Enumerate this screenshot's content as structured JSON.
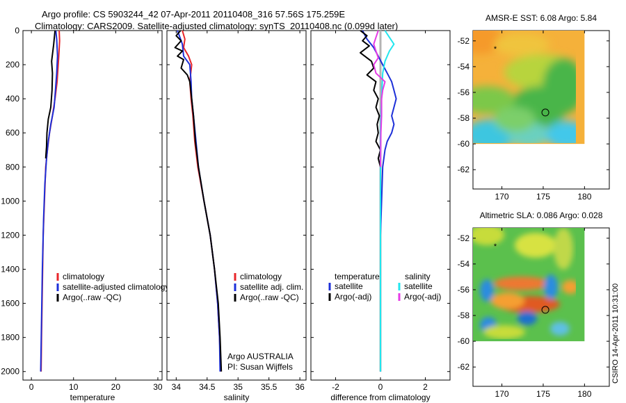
{
  "header": {
    "title_line1": "Argo profile: CS 5903244_42 07-Apr-2011 20110408_316 57.56S 175.259E",
    "title_line2": "Climatology: CARS2009. Satellite-adjusted climatology: synTS_20110408.nc (0.099d later)"
  },
  "side_label": "CSIRO 14-Apr-2011 10:31:00",
  "colors": {
    "climatology": "#e8262a",
    "satellite": "#1c2fd8",
    "argo": "#000000",
    "satellite_sal": "#22e6ee",
    "argo_sal": "#e63be6",
    "gray": "#b4b4b4"
  },
  "chart_data": [
    {
      "type": "line",
      "id": "temperature",
      "xlabel": "temperature",
      "ylabel": "",
      "xlim": [
        -2,
        31
      ],
      "ylim": [
        2050,
        0
      ],
      "y_reversed": true,
      "xticks": [
        0,
        10,
        20,
        30
      ],
      "yticks": [
        0,
        200,
        400,
        600,
        800,
        1000,
        1200,
        1400,
        1600,
        1800,
        2000
      ],
      "legend": [
        "climatology",
        "satellite-adjusted climatology",
        "Argo(..raw -QC)"
      ],
      "series": [
        {
          "name": "climatology",
          "color": "#e8262a",
          "points": [
            [
              6.6,
              0
            ],
            [
              6.7,
              60
            ],
            [
              6.5,
              150
            ],
            [
              6.1,
              300
            ],
            [
              5.6,
              400
            ],
            [
              5.0,
              500
            ],
            [
              4.3,
              600
            ],
            [
              3.8,
              700
            ],
            [
              3.4,
              800
            ],
            [
              3.1,
              1000
            ],
            [
              2.8,
              1200
            ],
            [
              2.6,
              1500
            ],
            [
              2.4,
              1800
            ],
            [
              2.3,
              2000
            ]
          ]
        },
        {
          "name": "satellite-adjusted climatology",
          "color": "#1c2fd8",
          "points": [
            [
              5.8,
              0
            ],
            [
              6.0,
              50
            ],
            [
              6.2,
              150
            ],
            [
              6.0,
              250
            ],
            [
              5.7,
              350
            ],
            [
              5.4,
              450
            ],
            [
              4.6,
              550
            ],
            [
              4.0,
              650
            ],
            [
              3.6,
              750
            ],
            [
              3.2,
              900
            ],
            [
              2.9,
              1100
            ],
            [
              2.6,
              1400
            ],
            [
              2.4,
              1700
            ],
            [
              2.2,
              2000
            ]
          ]
        },
        {
          "name": "Argo(..raw -QC)",
          "color": "#000000",
          "points": [
            [
              5.6,
              0
            ],
            [
              5.3,
              80
            ],
            [
              4.8,
              180
            ],
            [
              5.0,
              250
            ],
            [
              4.9,
              350
            ],
            [
              4.6,
              450
            ],
            [
              4.0,
              520
            ],
            [
              3.7,
              600
            ],
            [
              3.6,
              680
            ],
            [
              3.4,
              750
            ]
          ]
        }
      ]
    },
    {
      "type": "line",
      "id": "salinity",
      "xlabel": "salinity",
      "ylabel": "",
      "xlim": [
        33.85,
        36.1
      ],
      "ylim": [
        2050,
        0
      ],
      "y_reversed": true,
      "xticks": [
        34,
        34.5,
        35,
        35.5,
        36
      ],
      "legend": [
        "climatology",
        "satellite adj. clim.",
        "Argo(..raw -QC)"
      ],
      "annotations": [
        "Argo AUSTRALIA",
        "PI: Susan Wijffels"
      ],
      "series": [
        {
          "name": "climatology",
          "color": "#e8262a",
          "points": [
            [
              34.1,
              0
            ],
            [
              34.14,
              50
            ],
            [
              34.12,
              100
            ],
            [
              34.2,
              150
            ],
            [
              34.25,
              200
            ],
            [
              34.22,
              300
            ],
            [
              34.24,
              400
            ],
            [
              34.27,
              500
            ],
            [
              34.3,
              650
            ],
            [
              34.35,
              800
            ],
            [
              34.45,
              1000
            ],
            [
              34.55,
              1200
            ],
            [
              34.62,
              1400
            ],
            [
              34.67,
              1600
            ],
            [
              34.7,
              1800
            ],
            [
              34.72,
              2000
            ]
          ]
        },
        {
          "name": "satellite adj. clim.",
          "color": "#1c2fd8",
          "points": [
            [
              34.02,
              0
            ],
            [
              34.06,
              40
            ],
            [
              34.1,
              80
            ],
            [
              34.12,
              150
            ],
            [
              34.22,
              200
            ],
            [
              34.24,
              300
            ],
            [
              34.25,
              400
            ],
            [
              34.28,
              500
            ],
            [
              34.32,
              650
            ],
            [
              34.36,
              800
            ],
            [
              34.45,
              1000
            ],
            [
              34.55,
              1200
            ],
            [
              34.62,
              1400
            ],
            [
              34.67,
              1600
            ],
            [
              34.7,
              1800
            ],
            [
              34.71,
              2000
            ]
          ]
        },
        {
          "name": "Argo(..raw -QC)",
          "color": "#000000",
          "points": [
            [
              34.07,
              0
            ],
            [
              34.0,
              30
            ],
            [
              34.08,
              60
            ],
            [
              33.98,
              100
            ],
            [
              34.1,
              120
            ],
            [
              34.02,
              150
            ],
            [
              34.12,
              170
            ],
            [
              34.08,
              220
            ],
            [
              34.18,
              260
            ],
            [
              34.22,
              300
            ],
            [
              34.25,
              400
            ],
            [
              34.28,
              500
            ],
            [
              34.31,
              650
            ],
            [
              34.36,
              800
            ],
            [
              34.45,
              1000
            ],
            [
              34.55,
              1200
            ],
            [
              34.62,
              1400
            ],
            [
              34.68,
              1600
            ],
            [
              34.71,
              1800
            ],
            [
              34.73,
              2000
            ]
          ]
        }
      ]
    },
    {
      "type": "line",
      "id": "difference",
      "xlabel": "difference from climatology",
      "ylabel": "",
      "xlim": [
        -3.1,
        3.1
      ],
      "ylim": [
        2050,
        0
      ],
      "y_reversed": true,
      "xticks": [
        -2,
        0,
        2
      ],
      "legend_temperature": [
        "temperature",
        "satellite",
        "Argo(-adj)"
      ],
      "legend_salinity": [
        "salinity",
        "satellite",
        "Argo(-adj)"
      ],
      "series": [
        {
          "name": "temperature satellite",
          "color": "#1c2fd8",
          "points": [
            [
              -0.8,
              0
            ],
            [
              -0.6,
              50
            ],
            [
              -0.3,
              100
            ],
            [
              0.1,
              200
            ],
            [
              0.3,
              250
            ],
            [
              0.5,
              300
            ],
            [
              0.6,
              350
            ],
            [
              0.7,
              400
            ],
            [
              0.6,
              450
            ],
            [
              0.5,
              500
            ],
            [
              0.6,
              550
            ],
            [
              0.5,
              600
            ],
            [
              0.3,
              650
            ],
            [
              0.2,
              700
            ],
            [
              0.1,
              800
            ],
            [
              0.05,
              1000
            ],
            [
              0,
              1200
            ],
            [
              0,
              1500
            ],
            [
              0,
              2000
            ]
          ]
        },
        {
          "name": "temperature Argo(-adj)",
          "color": "#000000",
          "points": [
            [
              -0.9,
              0
            ],
            [
              -0.6,
              30
            ],
            [
              -0.8,
              60
            ],
            [
              -0.5,
              90
            ],
            [
              -0.9,
              130
            ],
            [
              -0.4,
              180
            ],
            [
              -0.3,
              220
            ],
            [
              -0.6,
              260
            ],
            [
              -0.2,
              300
            ],
            [
              -0.3,
              350
            ],
            [
              -0.1,
              400
            ],
            [
              -0.2,
              450
            ],
            [
              -0.05,
              500
            ],
            [
              -0.15,
              550
            ],
            [
              -0.1,
              600
            ],
            [
              -0.2,
              650
            ],
            [
              0,
              700
            ],
            [
              -0.1,
              750
            ],
            [
              0,
              800
            ]
          ]
        },
        {
          "name": "salinity satellite",
          "color": "#22e6ee",
          "points": [
            [
              0.2,
              0
            ],
            [
              0.4,
              40
            ],
            [
              0.6,
              80
            ],
            [
              0.4,
              120
            ],
            [
              0.2,
              180
            ],
            [
              0.1,
              250
            ],
            [
              0.05,
              400
            ],
            [
              0,
              600
            ],
            [
              0,
              1000
            ],
            [
              0,
              1500
            ],
            [
              0,
              2000
            ]
          ]
        },
        {
          "name": "salinity Argo(-adj)",
          "color": "#e63be6",
          "points": [
            [
              -0.1,
              0
            ],
            [
              -0.2,
              40
            ],
            [
              -0.3,
              80
            ],
            [
              -0.2,
              120
            ],
            [
              -0.1,
              160
            ],
            [
              -0.3,
              200
            ],
            [
              -0.2,
              250
            ],
            [
              0.2,
              300
            ],
            [
              0.1,
              350
            ],
            [
              0.05,
              400
            ],
            [
              0.05,
              500
            ],
            [
              0.02,
              600
            ],
            [
              0,
              800
            ]
          ]
        }
      ]
    },
    {
      "type": "heatmap",
      "id": "sst",
      "title": "AMSR-E SST: 6.08 Argo: 5.84",
      "xlim": [
        166.5,
        183
      ],
      "ylim": [
        -63.5,
        -51.2
      ],
      "xticks": [
        170,
        175,
        180
      ],
      "yticks": [
        -52,
        -54,
        -56,
        -58,
        -60,
        -62
      ],
      "data_extent": {
        "lon": [
          166.5,
          180
        ],
        "lat": [
          -60,
          -51.2
        ]
      },
      "float_position": [
        175.26,
        -57.56
      ],
      "previous_position": [
        169.2,
        -52.6
      ]
    },
    {
      "type": "heatmap",
      "id": "sla",
      "title": "Altimetric SLA: 0.086 Argo: 0.028",
      "xlim": [
        166.5,
        183
      ],
      "ylim": [
        -63.5,
        -51.2
      ],
      "xticks": [
        170,
        175,
        180
      ],
      "yticks": [
        -52,
        -54,
        -56,
        -58,
        -60,
        -62
      ],
      "data_extent": {
        "lon": [
          166.5,
          180
        ],
        "lat": [
          -60,
          -51.2
        ]
      },
      "float_position": [
        175.26,
        -57.56
      ],
      "previous_position": [
        169.2,
        -52.6
      ]
    }
  ]
}
